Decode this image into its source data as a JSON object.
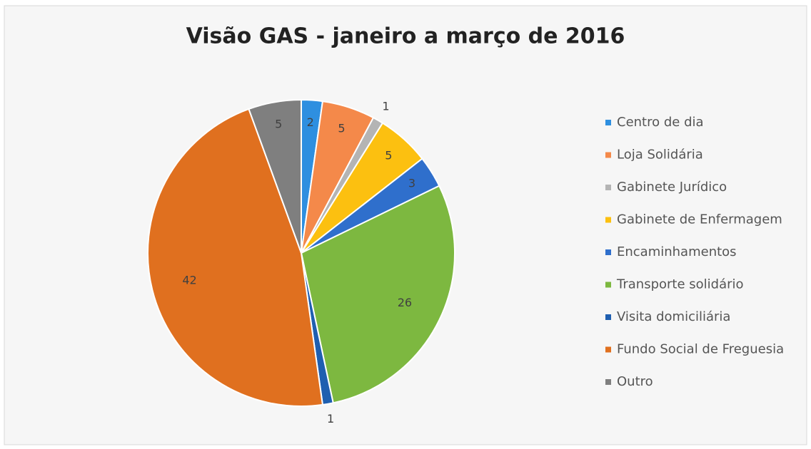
{
  "chart_data": {
    "type": "pie",
    "title": "Visão GAS - janeiro a março de 2016",
    "categories": [
      "Centro de dia",
      "Loja Solidária",
      "Gabinete Jurídico",
      "Gabinete de Enfermagem",
      "Encaminhamentos",
      "Transporte solidário",
      "Visita domiciliária",
      "Fundo Social de Freguesia",
      "Outro"
    ],
    "values": [
      2,
      5,
      1,
      5,
      3,
      26,
      1,
      42,
      5
    ],
    "colors": [
      "#2e8fe0",
      "#f4894a",
      "#b4b4b4",
      "#fcc010",
      "#2f6fcc",
      "#7db840",
      "#1f5fb0",
      "#e0701f",
      "#7f7f7f"
    ],
    "legend": "right"
  }
}
